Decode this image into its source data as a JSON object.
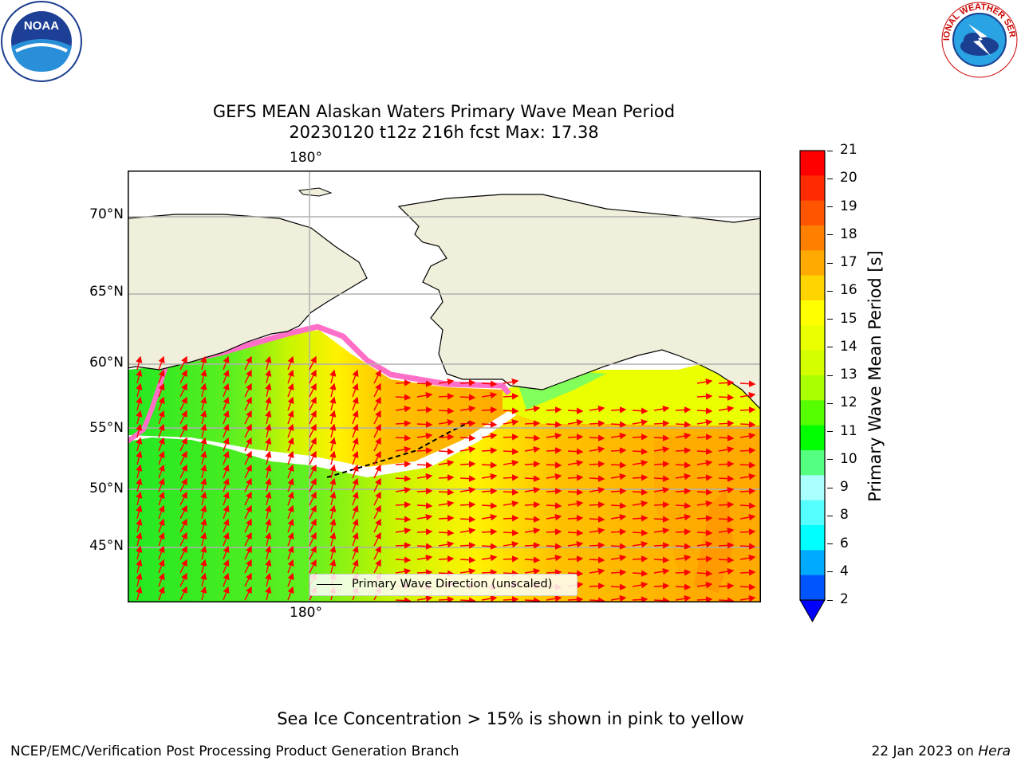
{
  "header": {
    "title_line1": "GEFS MEAN Alaskan Waters Primary Wave Mean Period",
    "title_line2": "20230120 t12z 216h fcst   Max: 17.38"
  },
  "logos": {
    "noaa_text": "NOAA",
    "nws_text": "NATIONAL WEATHER SERVICE"
  },
  "map": {
    "lat_labels": [
      "70°N",
      "65°N",
      "60°N",
      "55°N",
      "50°N",
      "45°N"
    ],
    "lon_label_top": "180°",
    "lon_label_bottom": "180°",
    "legend": "Primary Wave Direction (unscaled)",
    "colors": {
      "land": "#efefdb",
      "ice": "#ff6ec7",
      "arrow": "#ff0000",
      "grid": "#b0b0b0"
    }
  },
  "colorbar": {
    "label": "Primary Wave Mean Period [s]",
    "ticks": [
      "21",
      "20",
      "19",
      "18",
      "17",
      "16",
      "15",
      "14",
      "13",
      "12",
      "11",
      "10",
      "9",
      "8",
      "6",
      "4",
      "2"
    ],
    "colors": [
      "#ff0000",
      "#ff2a00",
      "#ff5500",
      "#ff8000",
      "#ffaa00",
      "#ffd400",
      "#ffff00",
      "#eaff00",
      "#d4ff00",
      "#aaff00",
      "#55ff00",
      "#00ff00",
      "#55ff80",
      "#aaffff",
      "#55ffff",
      "#00ffff",
      "#00aaff",
      "#0055ff"
    ],
    "extend_color": "#0000ff"
  },
  "footer": {
    "note": "Sea Ice Concentration > 15% is shown in pink to yellow",
    "credit": "NCEP/EMC/Verification Post Processing Product Generation Branch",
    "date_prefix": "22 Jan 2023 on ",
    "date_host": "Hera"
  }
}
